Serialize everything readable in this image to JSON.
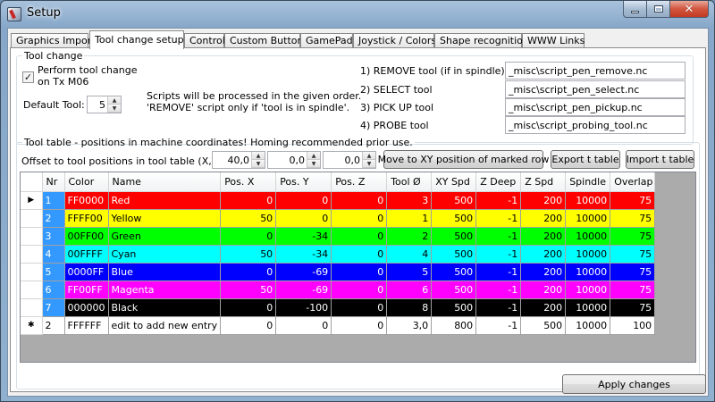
{
  "window": {
    "title": "Setup"
  },
  "tabs": [
    {
      "label": "Graphics Import",
      "active": false
    },
    {
      "label": "Tool change setup",
      "active": true
    },
    {
      "label": "Control",
      "active": false
    },
    {
      "label": "Custom Buttons",
      "active": false
    },
    {
      "label": "GamePad",
      "active": false
    },
    {
      "label": "Joystick / Colors",
      "active": false
    },
    {
      "label": "Shape recognition",
      "active": false
    },
    {
      "label": "WWW Links",
      "active": false
    }
  ],
  "tool_change": {
    "group_label": "Tool change",
    "perform_checkbox_label_line1": "Perform tool change",
    "perform_checkbox_label_line2": "on Tx M06",
    "perform_checked": true,
    "default_tool_label": "Default Tool:",
    "default_tool_value": "5",
    "info_line1": "Scripts will be processed in the given order.",
    "info_line2": "'REMOVE' script only if 'tool is in spindle'.",
    "scripts": [
      {
        "label": "1) REMOVE tool (if in spindle)",
        "value": "_misc\\script_pen_remove.nc"
      },
      {
        "label": "2) SELECT tool",
        "value": "_misc\\script_pen_select.nc"
      },
      {
        "label": "3) PICK UP tool",
        "value": "_misc\\script_pen_pickup.nc"
      },
      {
        "label": "4) PROBE tool",
        "value": "_misc\\script_probing_tool.nc"
      }
    ]
  },
  "tool_table": {
    "group_label": "Tool table - positions in machine coordinates! Homing recommended prior use.",
    "offset_label": "Offset to tool positions in tool table (X,Y,Z)",
    "offset_x": "40,0",
    "offset_y": "0,0",
    "offset_z": "0,0",
    "move_button": "Move to XY position of marked row",
    "export_button": "Export t table",
    "import_button": "Import t table",
    "columns": [
      "Nr",
      "Color",
      "Name",
      "Pos. X",
      "Pos. Y",
      "Pos. Z",
      "Tool Ø",
      "XY Spd",
      "Z Deep",
      "Z Spd",
      "Spindle",
      "Overlap"
    ],
    "rows": [
      {
        "marker": "▶",
        "nr": "1",
        "color": "FF0000",
        "name": "Red",
        "x": "0",
        "y": "0",
        "z": "0",
        "tool": "3",
        "xy": "500",
        "zdeep": "-1",
        "zspd": "200",
        "spindle": "10000",
        "overlap": "75",
        "bg": "#ff0000",
        "fg": "#ffffff"
      },
      {
        "marker": "",
        "nr": "2",
        "color": "FFFF00",
        "name": "Yellow",
        "x": "50",
        "y": "0",
        "z": "0",
        "tool": "1",
        "xy": "500",
        "zdeep": "-1",
        "zspd": "200",
        "spindle": "10000",
        "overlap": "75",
        "bg": "#ffff00",
        "fg": "#000000"
      },
      {
        "marker": "",
        "nr": "3",
        "color": "00FF00",
        "name": "Green",
        "x": "0",
        "y": "-34",
        "z": "0",
        "tool": "2",
        "xy": "500",
        "zdeep": "-1",
        "zspd": "200",
        "spindle": "10000",
        "overlap": "75",
        "bg": "#00ff00",
        "fg": "#000000"
      },
      {
        "marker": "",
        "nr": "4",
        "color": "00FFFF",
        "name": "Cyan",
        "x": "50",
        "y": "-34",
        "z": "0",
        "tool": "4",
        "xy": "500",
        "zdeep": "-1",
        "zspd": "200",
        "spindle": "10000",
        "overlap": "75",
        "bg": "#00ffff",
        "fg": "#000000"
      },
      {
        "marker": "",
        "nr": "5",
        "color": "0000FF",
        "name": "Blue",
        "x": "0",
        "y": "-69",
        "z": "0",
        "tool": "5",
        "xy": "500",
        "zdeep": "-1",
        "zspd": "200",
        "spindle": "10000",
        "overlap": "75",
        "bg": "#0000ff",
        "fg": "#ffffff"
      },
      {
        "marker": "",
        "nr": "6",
        "color": "FF00FF",
        "name": "Magenta",
        "x": "50",
        "y": "-69",
        "z": "0",
        "tool": "6",
        "xy": "500",
        "zdeep": "-1",
        "zspd": "200",
        "spindle": "10000",
        "overlap": "75",
        "bg": "#ff00ff",
        "fg": "#ffffff"
      },
      {
        "marker": "",
        "nr": "7",
        "color": "000000",
        "name": "Black",
        "x": "0",
        "y": "-100",
        "z": "0",
        "tool": "8",
        "xy": "500",
        "zdeep": "-1",
        "zspd": "200",
        "spindle": "10000",
        "overlap": "75",
        "bg": "#000000",
        "fg": "#ffffff"
      },
      {
        "marker": "✱",
        "nr": "2",
        "color": "FFFFFF",
        "name": "edit to add new entry",
        "x": "0",
        "y": "0",
        "z": "0",
        "tool": "3,0",
        "xy": "800",
        "zdeep": "-1",
        "zspd": "500",
        "spindle": "10000",
        "overlap": "100",
        "bg": "#ffffff",
        "fg": "#000000"
      }
    ]
  },
  "footer": {
    "apply_button": "Apply changes"
  }
}
